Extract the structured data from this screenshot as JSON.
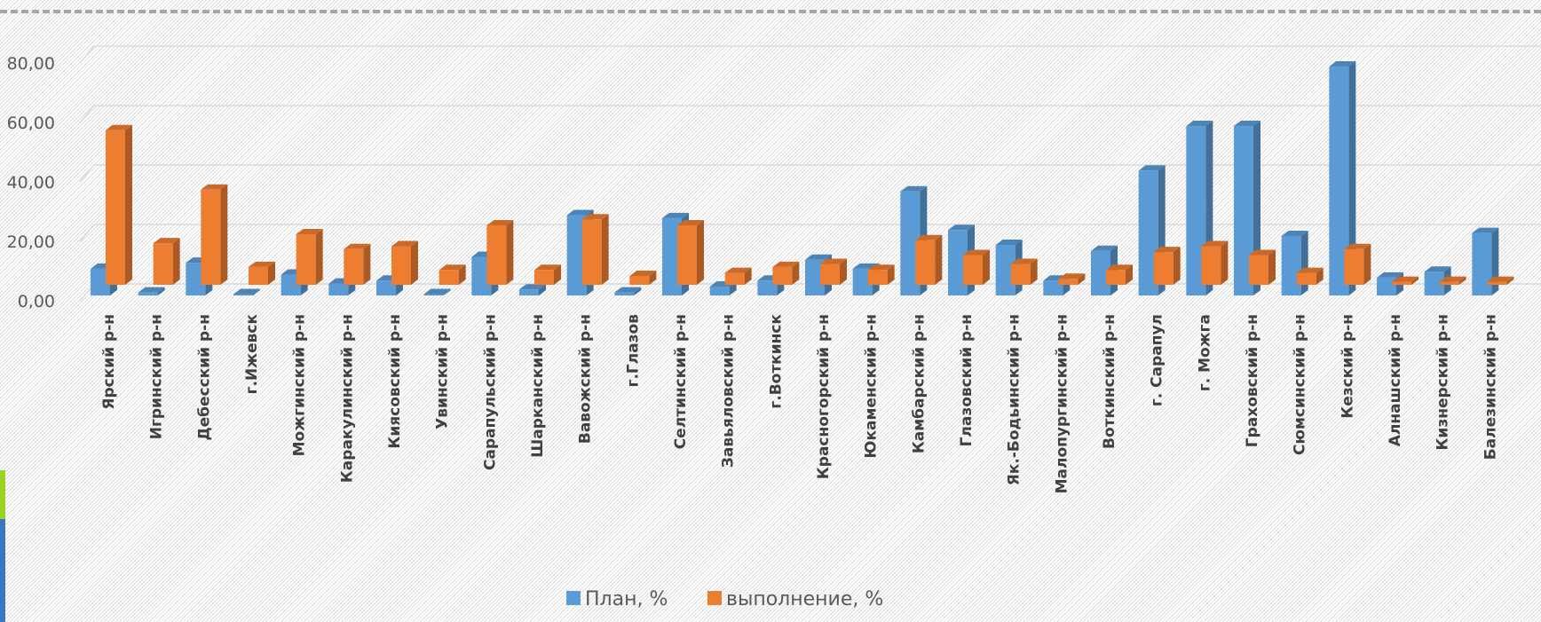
{
  "chart_data": {
    "type": "bar",
    "categories": [
      "Ярский р-н",
      "Игринский р-н",
      "Дебесский р-н",
      "г.Ижевск",
      "Можгинский р-н",
      "Каракулинский  р-н",
      "Киясовский р-н",
      "Увинский р-н",
      "Сарапульский р-н",
      "Шарканский р-н",
      "Вавожский р-н",
      "г.Глазов",
      "Селтинский р-н",
      "Завьяловский р-н",
      "г.Воткинск",
      "Красногорский р-н",
      "Юкаменский р-н",
      "Камбарский р-н",
      "Глазовский р-н",
      "Як.-Бодьинский р-н",
      "Малопургинский р-н",
      "Воткинский р-н",
      "г. Сарапул",
      "г. Можга",
      "Граховский р-н",
      "Сюмсинский р-н",
      "Кезский р-н",
      "Алнашский р-н",
      "Кизнерский р-н",
      "Балезинский р-н"
    ],
    "series": [
      {
        "name": "План, %",
        "color": "#5b9bd5",
        "values": [
          9,
          1,
          11,
          0,
          7,
          4,
          5,
          0,
          13,
          2,
          27,
          1,
          26,
          3,
          5,
          12,
          9,
          35,
          22,
          17,
          5,
          15,
          42,
          57,
          57,
          20,
          77,
          6,
          8,
          21
        ]
      },
      {
        "name": "выполнение, %",
        "color": "#ed7d31",
        "values": [
          52,
          14,
          32,
          6,
          17,
          12,
          13,
          5,
          20,
          5,
          22,
          3,
          20,
          4,
          6,
          7,
          5,
          15,
          10,
          7,
          2,
          5,
          11,
          13,
          10,
          4,
          12,
          1,
          1,
          1
        ]
      }
    ],
    "yticks": [
      "0,00",
      "20,00",
      "40,00",
      "60,00",
      "80,00"
    ],
    "ylim": [
      0,
      80
    ],
    "grid": true,
    "legend": "bottom"
  }
}
